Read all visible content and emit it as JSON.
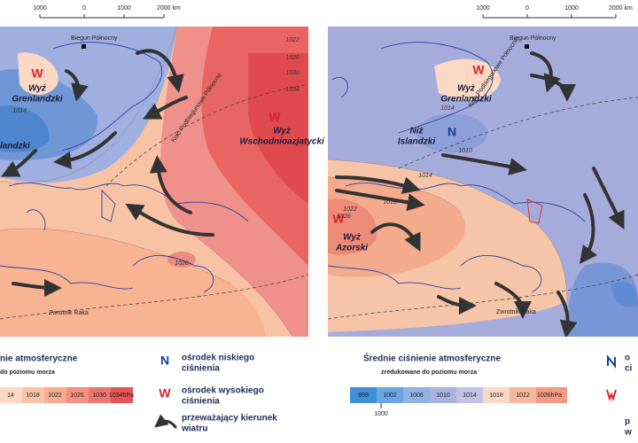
{
  "left_map": {
    "scale": [
      "1000",
      "0",
      "1000",
      "2000 km"
    ],
    "pole": "Biegun Północny",
    "arctic_circle": "Koło Podbiegunowe Północne",
    "tropic": "Zwrotnik Raka",
    "centers": [
      {
        "symbol": "W",
        "lines": [
          "Wyż",
          "Grenlandzki"
        ]
      },
      {
        "symbol": "W",
        "lines": [
          "Wyż",
          "Wschodnioazjatycki"
        ]
      }
    ],
    "partial_label": "landzki",
    "isobars": [
      "1022",
      "1026",
      "1030",
      "1034",
      "1014",
      "1026"
    ]
  },
  "right_map": {
    "scale": [
      "1000",
      "0",
      "1000",
      "2000 km"
    ],
    "pole": "Biegun Północny",
    "arctic_circle": "Koło Podbiegunowe Północne",
    "tropic": "Zwrotnik Raka",
    "centers": [
      {
        "symbol": "W",
        "lines": [
          "Wyż",
          "Grenlandzki"
        ]
      },
      {
        "symbol": "N",
        "lines": [
          "Niż",
          "Islandzki"
        ]
      },
      {
        "symbol": "W",
        "lines": [
          "Wyż",
          "Azorski"
        ]
      }
    ],
    "isobars": [
      "1014",
      "1010",
      "1014",
      "1018",
      "1022",
      "1026"
    ]
  },
  "legend_left": {
    "title": "nie atmosferyczne",
    "subtitle": "do poziomu morza",
    "scale": [
      "14",
      "1018",
      "1022",
      "1026",
      "1030",
      "1034hPa"
    ]
  },
  "legend_keys": [
    {
      "symbol": "N",
      "lines": [
        "ośrodek niskiego",
        "ciśnienia"
      ]
    },
    {
      "symbol": "W",
      "lines": [
        "ośrodek wysokiego",
        "ciśnienia"
      ]
    },
    {
      "lines": [
        "przeważający kierunek",
        "wiatru"
      ]
    }
  ],
  "legend_right": {
    "title": "Średnie ciśnienie atmosferyczne",
    "subtitle": "zredukowane do poziomu morza",
    "scale": [
      "998",
      "1002",
      "1006",
      "1010",
      "1014",
      "1018",
      "1022",
      "1026hPa"
    ],
    "extra_tick": "1000",
    "cut_keys": [
      "o",
      "ci",
      "p",
      "w"
    ]
  }
}
